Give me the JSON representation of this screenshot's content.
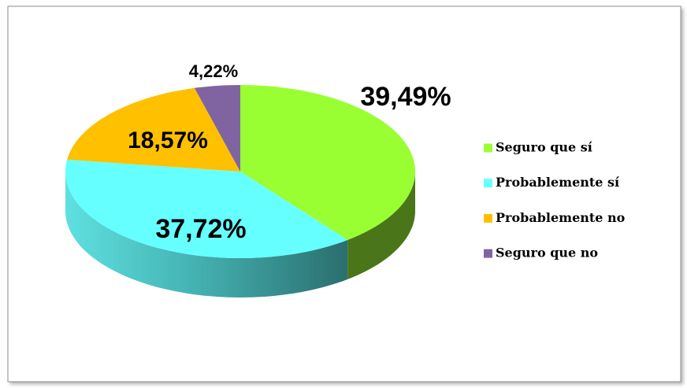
{
  "chart_data": {
    "type": "pie3d",
    "categories": [
      "Seguro que sí",
      "Probablemente sí",
      "Probablemente no",
      "Seguro que no"
    ],
    "values": [
      39.49,
      37.72,
      18.57,
      4.22
    ],
    "value_labels": [
      "39,49%",
      "37,72%",
      "18,57%",
      "4,22%"
    ],
    "colors": [
      "#99ff33",
      "#66ffff",
      "#ffc000",
      "#8064a2"
    ],
    "legend": "right"
  }
}
